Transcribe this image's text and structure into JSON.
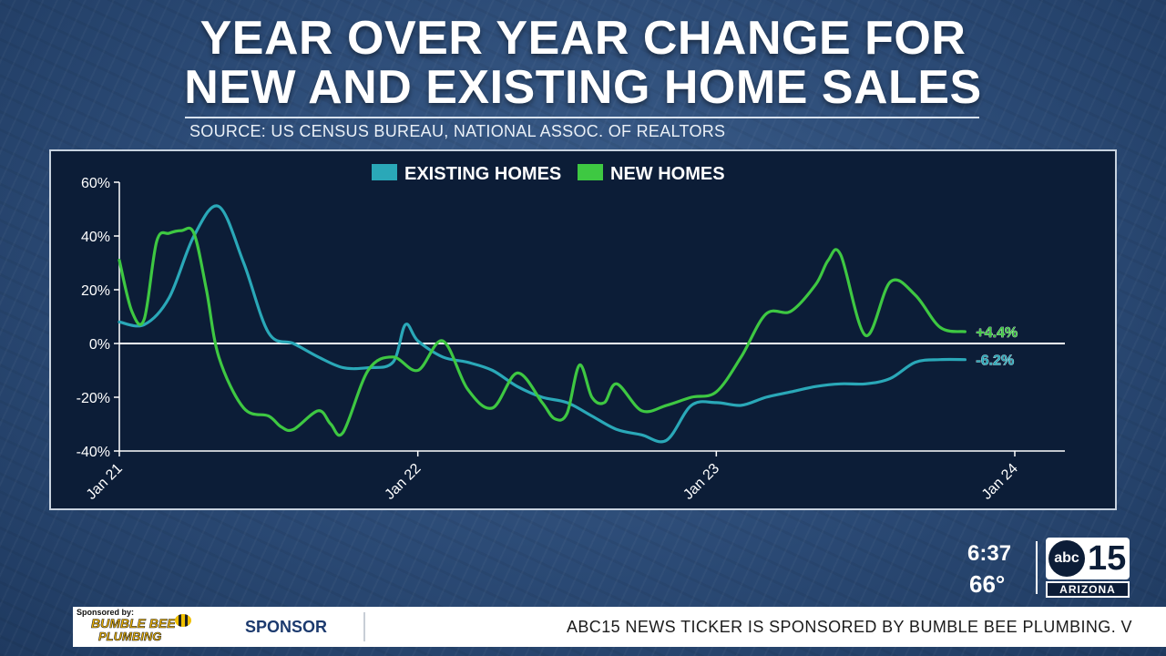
{
  "headline": {
    "line1": "YEAR OVER YEAR CHANGE FOR",
    "line2": "NEW AND EXISTING HOME SALES"
  },
  "source": "SOURCE: US CENSUS BUREAU, NATIONAL ASSOC. OF REALTORS",
  "chart_data": {
    "type": "line",
    "title": "YEAR OVER YEAR CHANGE FOR NEW AND EXISTING HOME SALES",
    "y_ticks": [
      "60%",
      "40%",
      "20%",
      "0%",
      "-20%",
      "-40%"
    ],
    "x_ticks": [
      "Jan 21",
      "Jan 22",
      "Jan 23",
      "Jan 24"
    ],
    "ylim": [
      -40,
      60
    ],
    "x_unit": "months since Jan 21",
    "xlim": [
      0,
      36
    ],
    "grid": false,
    "legend_position": "top",
    "series": [
      {
        "name": "EXISTING HOMES",
        "color": "#2aa8b8",
        "end_label": "-6.2%",
        "x": [
          0,
          1,
          2,
          3,
          4,
          5,
          6,
          7,
          8,
          9,
          10,
          11,
          11.5,
          12,
          13,
          14,
          15,
          16,
          17,
          18,
          19,
          20,
          21,
          22,
          23,
          24,
          25,
          26,
          27,
          28,
          29,
          30,
          31,
          32,
          33,
          34
        ],
        "values": [
          8,
          7,
          17,
          40,
          51,
          30,
          4,
          0,
          -5,
          -9,
          -9,
          -7,
          7,
          1,
          -5,
          -7,
          -10,
          -16,
          -20,
          -22,
          -27,
          -32,
          -34,
          -36,
          -23,
          -22,
          -23,
          -20,
          -18,
          -16,
          -15,
          -15,
          -13,
          -7,
          -6,
          -6
        ]
      },
      {
        "name": "NEW HOMES",
        "color": "#3ec842",
        "end_label": "+4.4%",
        "x": [
          0,
          0.5,
          1,
          1.5,
          2,
          2.5,
          3,
          3.5,
          4,
          5,
          6,
          6.5,
          7,
          8,
          8.5,
          9,
          10,
          11,
          12,
          13,
          14,
          15,
          16,
          17,
          17.5,
          18,
          18.5,
          19,
          19.5,
          20,
          21,
          22,
          23,
          24,
          25,
          26,
          27,
          28,
          28.5,
          29,
          30,
          31,
          32,
          33,
          34
        ],
        "values": [
          31,
          12,
          9,
          38,
          41,
          42,
          41,
          20,
          -5,
          -24,
          -27,
          -31,
          -32,
          -25,
          -30,
          -33,
          -10,
          -5,
          -10,
          1,
          -17,
          -24,
          -11,
          -22,
          -28,
          -26,
          -8,
          -20,
          -22,
          -15,
          -25,
          -23,
          -20,
          -18,
          -5,
          11,
          12,
          22,
          31,
          33,
          3,
          23,
          18,
          6,
          4.4
        ]
      }
    ]
  },
  "broadcast": {
    "time": "6:37",
    "temperature": "66°",
    "logo_abc": "abc",
    "logo_channel": "15",
    "logo_region": "ARIZONA"
  },
  "ticker": {
    "sponsored_by": "Sponsored by:",
    "brand_line1": "BUMBLE BEE",
    "brand_line2": "PLUMBING",
    "sponsor_label": "SPONSOR",
    "text": "ABC15 NEWS TICKER IS SPONSORED BY BUMBLE BEE PLUMBING. V"
  }
}
